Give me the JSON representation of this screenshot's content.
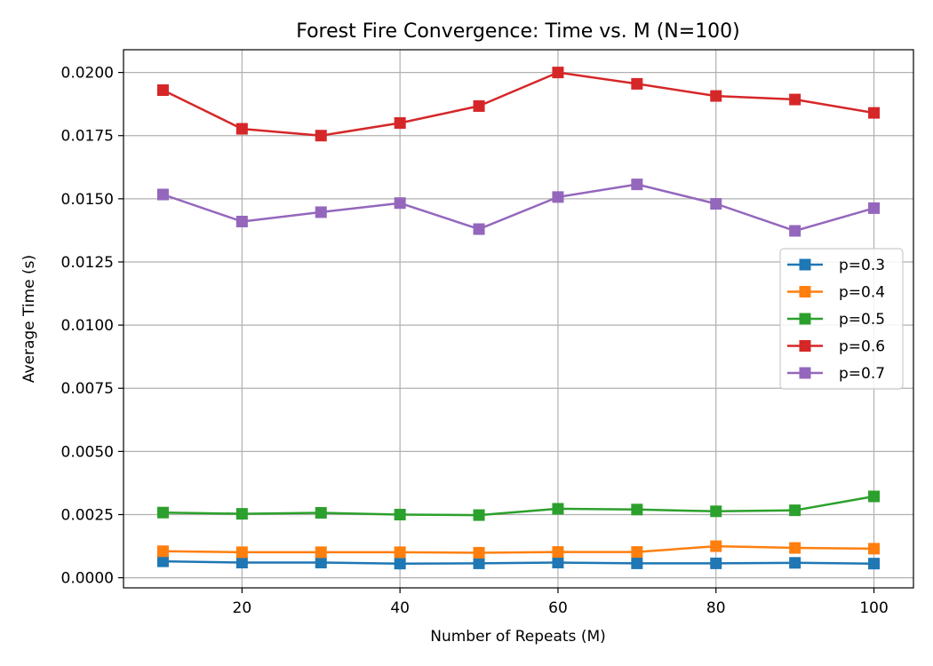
{
  "chart_data": {
    "type": "line",
    "title": "Forest Fire Convergence: Time vs. M (N=100)",
    "xlabel": "Number of Repeats (M)",
    "ylabel": "Average Time (s)",
    "x": [
      10,
      20,
      30,
      40,
      50,
      60,
      70,
      80,
      90,
      100
    ],
    "xlim": [
      5,
      105
    ],
    "ylim": [
      -0.0004,
      0.0209
    ],
    "xticks": [
      20,
      40,
      60,
      80,
      100
    ],
    "xtick_labels": [
      "20",
      "40",
      "60",
      "80",
      "100"
    ],
    "yticks": [
      0,
      0.0025,
      0.005,
      0.0075,
      0.01,
      0.0125,
      0.015,
      0.0175,
      0.02
    ],
    "ytick_labels": [
      "0.0000",
      "0.0025",
      "0.0050",
      "0.0075",
      "0.0100",
      "0.0125",
      "0.0150",
      "0.0175",
      "0.0200"
    ],
    "grid": true,
    "legend_position": "center-right",
    "marker": "square",
    "series": [
      {
        "name": "p=0.3",
        "color": "#1f77b4",
        "values": [
          0.00065,
          0.0006,
          0.0006,
          0.00056,
          0.00057,
          0.0006,
          0.00057,
          0.00057,
          0.00059,
          0.00056
        ]
      },
      {
        "name": "p=0.4",
        "color": "#ff7f0e",
        "values": [
          0.00105,
          0.00101,
          0.00101,
          0.00101,
          0.00099,
          0.00102,
          0.00102,
          0.00125,
          0.00118,
          0.00115
        ]
      },
      {
        "name": "p=0.5",
        "color": "#2ca02c",
        "values": [
          0.00258,
          0.00253,
          0.00257,
          0.0025,
          0.00248,
          0.00273,
          0.0027,
          0.00263,
          0.00267,
          0.00322
        ]
      },
      {
        "name": "p=0.6",
        "color": "#d62728",
        "values": [
          0.0193,
          0.01777,
          0.0175,
          0.018,
          0.01867,
          0.02,
          0.01955,
          0.01907,
          0.01893,
          0.0184
        ]
      },
      {
        "name": "p=0.7",
        "color": "#9467bd",
        "values": [
          0.01517,
          0.0141,
          0.01447,
          0.01483,
          0.0138,
          0.01507,
          0.01557,
          0.0148,
          0.01373,
          0.01463
        ]
      }
    ]
  }
}
